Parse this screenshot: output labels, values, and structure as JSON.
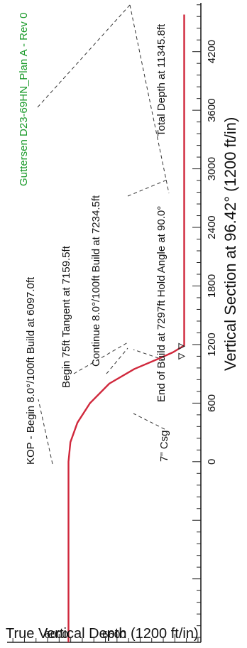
{
  "chart_data": {
    "type": "line",
    "title": "Guttersen D23-69HN_Plan A - Rev 0",
    "xlabel": "Vertical Section at 96.42° (1200 ft/in)",
    "ylabel": "True Vertical Depth (1200 ft/in)",
    "x_ticks": [
      "0",
      "600",
      "1200",
      "1800",
      "2400",
      "3000",
      "3600",
      "4200"
    ],
    "x_tick_values": [
      0,
      600,
      1200,
      1800,
      2400,
      3000,
      3600,
      4200
    ],
    "y_ticks": [
      "6000",
      "6600"
    ],
    "y_tick_values": [
      6000,
      6600
    ],
    "xlim": [
      -1850,
      4700
    ],
    "ylim": [
      5460,
      7470
    ],
    "y_inverted": true,
    "grid": false,
    "line_color": "#d0283c",
    "title_color": "#1a9a2a",
    "series": [
      {
        "values": [
          {
            "x": -1850,
            "y": 6097
          },
          {
            "x": 0,
            "y": 6097
          },
          {
            "x": 200,
            "y": 6117
          },
          {
            "x": 400,
            "y": 6190
          },
          {
            "x": 600,
            "y": 6320
          },
          {
            "x": 800,
            "y": 6520
          },
          {
            "x": 950,
            "y": 6780
          },
          {
            "x": 1050,
            "y": 7020
          },
          {
            "x": 1120,
            "y": 7180
          },
          {
            "x": 1190,
            "y": 7297
          },
          {
            "x": 4580,
            "y": 7297
          }
        ]
      }
    ],
    "annotations": [
      {
        "text": "KOP - Begin 8.0°/100ft Build at 6097.0ft",
        "x": 0,
        "y": 6097
      },
      {
        "text": "Begin 75ft Tangent at 7159.5ft",
        "x": 1100,
        "y": 7160
      },
      {
        "text": "Continue 8.0°/100ft Build at 7234.5ft",
        "x": 1150,
        "y": 7235
      },
      {
        "text": "End of Build at 7297ft Hold Angle at 90.0°",
        "x": 1190,
        "y": 7297
      },
      {
        "text": "7\" Csg",
        "x": 1080,
        "y": 7110
      },
      {
        "text": "Total Depth at 11345.8ft",
        "x": 4580,
        "y": 7297
      }
    ]
  }
}
